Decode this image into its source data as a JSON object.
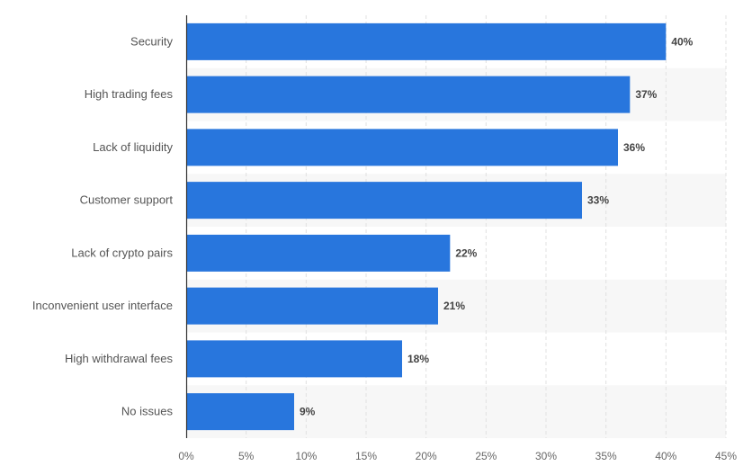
{
  "chart_data": {
    "type": "bar",
    "orientation": "horizontal",
    "categories": [
      "Security",
      "High trading fees",
      "Lack of liquidity",
      "Customer support",
      "Lack of crypto pairs",
      "Inconvenient user interface",
      "High withdrawal fees",
      "No issues"
    ],
    "values": [
      40,
      37,
      36,
      33,
      22,
      21,
      18,
      9
    ],
    "value_labels": [
      "40%",
      "37%",
      "36%",
      "33%",
      "22%",
      "21%",
      "18%",
      "9%"
    ],
    "xticks": [
      0,
      5,
      10,
      15,
      20,
      25,
      30,
      35,
      40,
      45
    ],
    "xtick_labels": [
      "0%",
      "5%",
      "10%",
      "15%",
      "20%",
      "25%",
      "30%",
      "35%",
      "40%",
      "45%"
    ],
    "xlim": [
      0,
      45
    ],
    "title": "",
    "xlabel": "",
    "ylabel": "",
    "grid": "vertical dashed gridlines",
    "legend": "none",
    "colors": {
      "bar": "#2876dd",
      "band": "#f7f7f7",
      "grid": "#e0e0e0",
      "axis": "#333333"
    }
  }
}
